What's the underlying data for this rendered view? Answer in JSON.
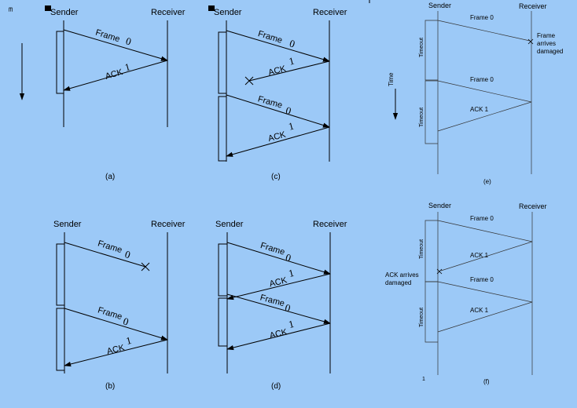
{
  "texts": {
    "a_sender": "Sender",
    "a_receiver": "Receiver",
    "a_frame": "Frame",
    "a_frame_num": "0",
    "a_ack": "ACK",
    "a_ack_num": "1",
    "a_caption": "(a)",
    "c_sender": "Sender",
    "c_receiver": "Receiver",
    "c_frame1": "Frame",
    "c_frame1_num": "0",
    "c_ack1": "ACK",
    "c_ack1_num": "1",
    "c_frame2": "Frame",
    "c_frame2_num": "0",
    "c_ack2": "ACK",
    "c_ack2_num": "1",
    "c_caption": "(c)",
    "e_sender": "Sender",
    "e_receiver": "Receiver",
    "e_frame1": "Frame 0",
    "e_damaged_1": "Frame",
    "e_damaged_2": "arrives",
    "e_damaged_3": "damaged",
    "e_frame2": "Frame 0",
    "e_ack": "ACK 1",
    "e_time": "Time",
    "e_timeout1": "Timeout",
    "e_timeout2": "Timeout",
    "e_caption": "(e)",
    "b_sender": "Sender",
    "b_receiver": "Receiver",
    "b_frame1": "Frame",
    "b_frame1_num": "0",
    "b_frame2": "Frame",
    "b_frame2_num": "0",
    "b_ack": "ACK",
    "b_ack_num": "1",
    "b_caption": "(b)",
    "d_sender": "Sender",
    "d_receiver": "Receiver",
    "d_frame1": "Frame",
    "d_frame1_num": "0",
    "d_ack1": "ACK",
    "d_ack1_num": "1",
    "d_frame2": "Frame",
    "d_frame2_num": "0",
    "d_ack2": "ACK",
    "d_ack2_num": "1",
    "d_caption": "(d)",
    "f_sender": "Sender",
    "f_receiver": "Receiver",
    "f_frame1": "Frame 0",
    "f_ack1": "ACK 1",
    "f_ack_damaged_1": "ACK arrives",
    "f_ack_damaged_2": "damaged",
    "f_frame2": "Frame 0",
    "f_ack2": "ACK 1",
    "f_timeout1": "Timeout",
    "f_timeout2": "Timeout",
    "f_caption": "(f)",
    "f_footnote": "1"
  },
  "colors": {
    "background": "#9cc9f7",
    "ink": "#000000",
    "thin_ink": "#333333"
  }
}
